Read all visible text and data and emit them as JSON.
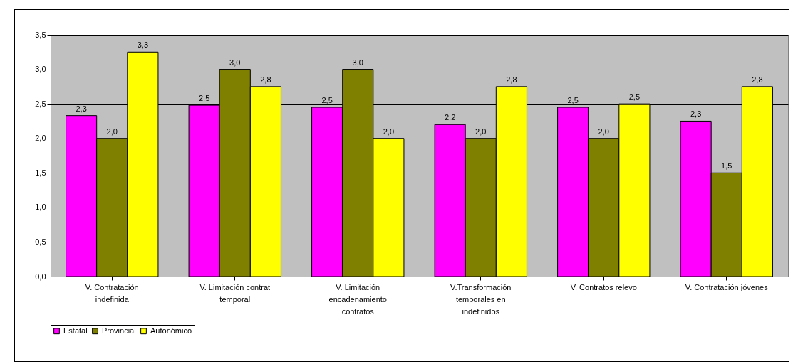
{
  "chart_data": {
    "type": "bar",
    "categories": [
      "V. Contratación indefinida",
      "V. Limitación contrat temporal",
      "V. Limitación encadenamiento contratos",
      "V.Transformación temporales en indefinidos",
      "V. Contratos relevo",
      "V. Contratación jóvenes"
    ],
    "series": [
      {
        "name": "Estatal",
        "color": "#ff00ff",
        "values": [
          2.33,
          2.48,
          2.45,
          2.2,
          2.45,
          2.25
        ],
        "value_labels": [
          "2,3",
          "2,5",
          "2,5",
          "2,2",
          "2,5",
          "2,3"
        ]
      },
      {
        "name": "Provincial",
        "color": "#808000",
        "values": [
          2.0,
          3.0,
          3.0,
          2.0,
          2.0,
          1.5
        ],
        "value_labels": [
          "2,0",
          "3,0",
          "3,0",
          "2,0",
          "2,0",
          "1,5"
        ]
      },
      {
        "name": "Autonómico",
        "color": "#ffff00",
        "values": [
          3.25,
          2.75,
          2.0,
          2.75,
          2.5,
          2.75
        ],
        "value_labels": [
          "3,3",
          "2,8",
          "2,0",
          "2,8",
          "2,5",
          "2,8"
        ]
      }
    ],
    "ylim": [
      0,
      3.5
    ],
    "yticks": [
      {
        "value": 0,
        "label": "0,0"
      },
      {
        "value": 0.5,
        "label": "0,5"
      },
      {
        "value": 1,
        "label": "1,0"
      },
      {
        "value": 1.5,
        "label": "1,5"
      },
      {
        "value": 2,
        "label": "2,0"
      },
      {
        "value": 2.5,
        "label": "2,5"
      },
      {
        "value": 3,
        "label": "3,0"
      },
      {
        "value": 3.5,
        "label": "3,5"
      }
    ],
    "grid": "y",
    "legend": "bottom"
  }
}
